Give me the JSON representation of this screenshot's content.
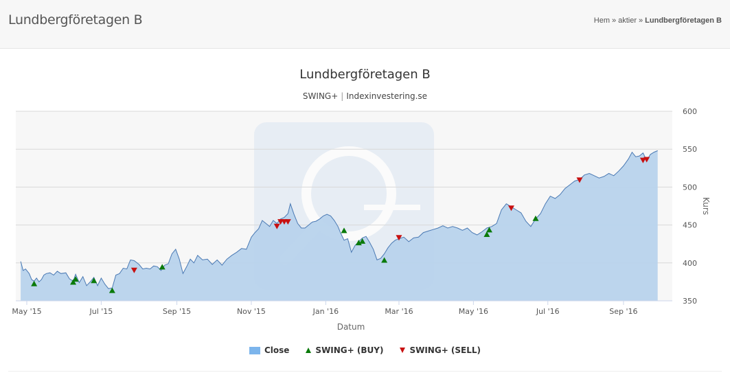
{
  "header": {
    "page_title": "Lundbergföretagen B",
    "breadcrumb": {
      "home": "Hem",
      "section": "aktier",
      "current": "Lundbergföretagen B",
      "separator": "»"
    }
  },
  "colors": {
    "area_fill": "#b8d3ec",
    "line": "#4a79b3",
    "buy": "#0a7a0a",
    "sell": "#c81010",
    "plot_bg": "#f7f7f7"
  },
  "chart_data": {
    "type": "area",
    "title": "Lundbergföretagen B",
    "subtitle_parts": [
      "SWING+",
      "Indexinvestering.se"
    ],
    "xlabel": "Datum",
    "ylabel": "Kurs",
    "ylim": [
      350,
      600
    ],
    "yticks": [
      350,
      400,
      450,
      500,
      550,
      600
    ],
    "y_axis_position": "right",
    "xlim": [
      "2015-04-22",
      "2016-10-11"
    ],
    "xticks": [
      {
        "date": "2015-05-01",
        "label": "May '15"
      },
      {
        "date": "2015-07-01",
        "label": "Jul '15"
      },
      {
        "date": "2015-09-01",
        "label": "Sep '15"
      },
      {
        "date": "2015-11-01",
        "label": "Nov '15"
      },
      {
        "date": "2016-01-01",
        "label": "Jan '16"
      },
      {
        "date": "2016-03-01",
        "label": "Mar '16"
      },
      {
        "date": "2016-05-01",
        "label": "May '16"
      },
      {
        "date": "2016-07-01",
        "label": "Jul '16"
      },
      {
        "date": "2016-09-01",
        "label": "Sep '16"
      }
    ],
    "grid": true,
    "legend_position": "bottom-center",
    "series": [
      {
        "name": "Close",
        "kind": "area",
        "points": [
          [
            "2015-04-26",
            402
          ],
          [
            "2015-04-28",
            390
          ],
          [
            "2015-04-30",
            392
          ],
          [
            "2015-05-03",
            386
          ],
          [
            "2015-05-05",
            378
          ],
          [
            "2015-05-07",
            376
          ],
          [
            "2015-05-09",
            380
          ],
          [
            "2015-05-11",
            375
          ],
          [
            "2015-05-13",
            378
          ],
          [
            "2015-05-15",
            384
          ],
          [
            "2015-05-17",
            386
          ],
          [
            "2015-05-20",
            387
          ],
          [
            "2015-05-23",
            384
          ],
          [
            "2015-05-26",
            389
          ],
          [
            "2015-05-29",
            386
          ],
          [
            "2015-06-02",
            387
          ],
          [
            "2015-06-05",
            379
          ],
          [
            "2015-06-08",
            376
          ],
          [
            "2015-06-10",
            385
          ],
          [
            "2015-06-13",
            374
          ],
          [
            "2015-06-16",
            382
          ],
          [
            "2015-06-19",
            370
          ],
          [
            "2015-06-22",
            375
          ],
          [
            "2015-06-25",
            381
          ],
          [
            "2015-06-28",
            370
          ],
          [
            "2015-07-01",
            380
          ],
          [
            "2015-07-04",
            372
          ],
          [
            "2015-07-07",
            366
          ],
          [
            "2015-07-10",
            367
          ],
          [
            "2015-07-13",
            384
          ],
          [
            "2015-07-16",
            386
          ],
          [
            "2015-07-19",
            393
          ],
          [
            "2015-07-22",
            392
          ],
          [
            "2015-07-25",
            404
          ],
          [
            "2015-07-28",
            403
          ],
          [
            "2015-08-01",
            398
          ],
          [
            "2015-08-04",
            392
          ],
          [
            "2015-08-07",
            393
          ],
          [
            "2015-08-10",
            392
          ],
          [
            "2015-08-13",
            396
          ],
          [
            "2015-08-16",
            395
          ],
          [
            "2015-08-19",
            390
          ],
          [
            "2015-08-22",
            397
          ],
          [
            "2015-08-25",
            399
          ],
          [
            "2015-08-28",
            412
          ],
          [
            "2015-08-31",
            418
          ],
          [
            "2015-09-03",
            405
          ],
          [
            "2015-09-06",
            386
          ],
          [
            "2015-09-09",
            395
          ],
          [
            "2015-09-12",
            405
          ],
          [
            "2015-09-15",
            400
          ],
          [
            "2015-09-18",
            410
          ],
          [
            "2015-09-22",
            404
          ],
          [
            "2015-09-26",
            405
          ],
          [
            "2015-09-30",
            398
          ],
          [
            "2015-10-04",
            404
          ],
          [
            "2015-10-08",
            397
          ],
          [
            "2015-10-12",
            405
          ],
          [
            "2015-10-16",
            410
          ],
          [
            "2015-10-20",
            414
          ],
          [
            "2015-10-24",
            419
          ],
          [
            "2015-10-28",
            418
          ],
          [
            "2015-11-01",
            434
          ],
          [
            "2015-11-04",
            440
          ],
          [
            "2015-11-07",
            445
          ],
          [
            "2015-11-10",
            456
          ],
          [
            "2015-11-13",
            452
          ],
          [
            "2015-11-16",
            448
          ],
          [
            "2015-11-19",
            456
          ],
          [
            "2015-11-22",
            452
          ],
          [
            "2015-11-25",
            458
          ],
          [
            "2015-11-28",
            460
          ],
          [
            "2015-12-01",
            465
          ],
          [
            "2015-12-03",
            478
          ],
          [
            "2015-12-06",
            464
          ],
          [
            "2015-12-09",
            452
          ],
          [
            "2015-12-12",
            446
          ],
          [
            "2015-12-15",
            446
          ],
          [
            "2015-12-18",
            450
          ],
          [
            "2015-12-21",
            454
          ],
          [
            "2015-12-24",
            455
          ],
          [
            "2015-12-27",
            458
          ],
          [
            "2015-12-30",
            462
          ],
          [
            "2016-01-02",
            464
          ],
          [
            "2016-01-05",
            462
          ],
          [
            "2016-01-08",
            456
          ],
          [
            "2016-01-11",
            448
          ],
          [
            "2016-01-13",
            440
          ],
          [
            "2016-01-16",
            430
          ],
          [
            "2016-01-19",
            432
          ],
          [
            "2016-01-22",
            414
          ],
          [
            "2016-01-25",
            423
          ],
          [
            "2016-01-28",
            428
          ],
          [
            "2016-01-31",
            433
          ],
          [
            "2016-02-03",
            435
          ],
          [
            "2016-02-06",
            427
          ],
          [
            "2016-02-09",
            418
          ],
          [
            "2016-02-12",
            404
          ],
          [
            "2016-02-15",
            406
          ],
          [
            "2016-02-18",
            412
          ],
          [
            "2016-02-21",
            420
          ],
          [
            "2016-02-24",
            426
          ],
          [
            "2016-02-27",
            430
          ],
          [
            "2016-03-01",
            432
          ],
          [
            "2016-03-05",
            434
          ],
          [
            "2016-03-09",
            428
          ],
          [
            "2016-03-13",
            433
          ],
          [
            "2016-03-17",
            434
          ],
          [
            "2016-03-21",
            440
          ],
          [
            "2016-03-25",
            442
          ],
          [
            "2016-03-29",
            444
          ],
          [
            "2016-04-02",
            446
          ],
          [
            "2016-04-06",
            449
          ],
          [
            "2016-04-10",
            446
          ],
          [
            "2016-04-14",
            448
          ],
          [
            "2016-04-18",
            446
          ],
          [
            "2016-04-22",
            443
          ],
          [
            "2016-04-26",
            446
          ],
          [
            "2016-04-30",
            440
          ],
          [
            "2016-05-04",
            437
          ],
          [
            "2016-05-08",
            441
          ],
          [
            "2016-05-12",
            446
          ],
          [
            "2016-05-16",
            448
          ],
          [
            "2016-05-20",
            452
          ],
          [
            "2016-05-24",
            470
          ],
          [
            "2016-05-28",
            478
          ],
          [
            "2016-06-01",
            474
          ],
          [
            "2016-06-05",
            470
          ],
          [
            "2016-06-09",
            466
          ],
          [
            "2016-06-13",
            455
          ],
          [
            "2016-06-17",
            448
          ],
          [
            "2016-06-21",
            458
          ],
          [
            "2016-06-25",
            465
          ],
          [
            "2016-06-29",
            478
          ],
          [
            "2016-07-03",
            488
          ],
          [
            "2016-07-07",
            485
          ],
          [
            "2016-07-11",
            490
          ],
          [
            "2016-07-15",
            498
          ],
          [
            "2016-07-19",
            503
          ],
          [
            "2016-07-23",
            508
          ],
          [
            "2016-07-27",
            510
          ],
          [
            "2016-07-31",
            516
          ],
          [
            "2016-08-04",
            518
          ],
          [
            "2016-08-08",
            515
          ],
          [
            "2016-08-12",
            512
          ],
          [
            "2016-08-16",
            514
          ],
          [
            "2016-08-20",
            518
          ],
          [
            "2016-08-24",
            515
          ],
          [
            "2016-08-28",
            521
          ],
          [
            "2016-09-01",
            528
          ],
          [
            "2016-09-05",
            537
          ],
          [
            "2016-09-08",
            546
          ],
          [
            "2016-09-11",
            540
          ],
          [
            "2016-09-14",
            541
          ],
          [
            "2016-09-17",
            545
          ],
          [
            "2016-09-20",
            535
          ],
          [
            "2016-09-23",
            543
          ],
          [
            "2016-09-26",
            546
          ],
          [
            "2016-09-29",
            548
          ]
        ]
      },
      {
        "name": "SWING+ (BUY)",
        "kind": "marker-up",
        "points": [
          [
            "2015-05-07",
            372
          ],
          [
            "2015-06-08",
            374
          ],
          [
            "2015-06-10",
            378
          ],
          [
            "2015-06-25",
            376
          ],
          [
            "2015-07-10",
            363
          ],
          [
            "2015-08-20",
            394
          ],
          [
            "2016-01-16",
            442
          ],
          [
            "2016-01-28",
            426
          ],
          [
            "2016-01-31",
            428
          ],
          [
            "2016-02-18",
            403
          ],
          [
            "2016-05-12",
            437
          ],
          [
            "2016-05-14",
            443
          ],
          [
            "2016-06-21",
            458
          ]
        ]
      },
      {
        "name": "SWING+ (SELL)",
        "kind": "marker-down",
        "points": [
          [
            "2015-07-28",
            391
          ],
          [
            "2015-11-22",
            449
          ],
          [
            "2015-11-25",
            455
          ],
          [
            "2015-11-28",
            455
          ],
          [
            "2015-12-01",
            455
          ],
          [
            "2016-03-01",
            434
          ],
          [
            "2016-06-01",
            473
          ],
          [
            "2016-07-27",
            510
          ],
          [
            "2016-09-17",
            536
          ],
          [
            "2016-09-20",
            537
          ]
        ]
      }
    ]
  }
}
